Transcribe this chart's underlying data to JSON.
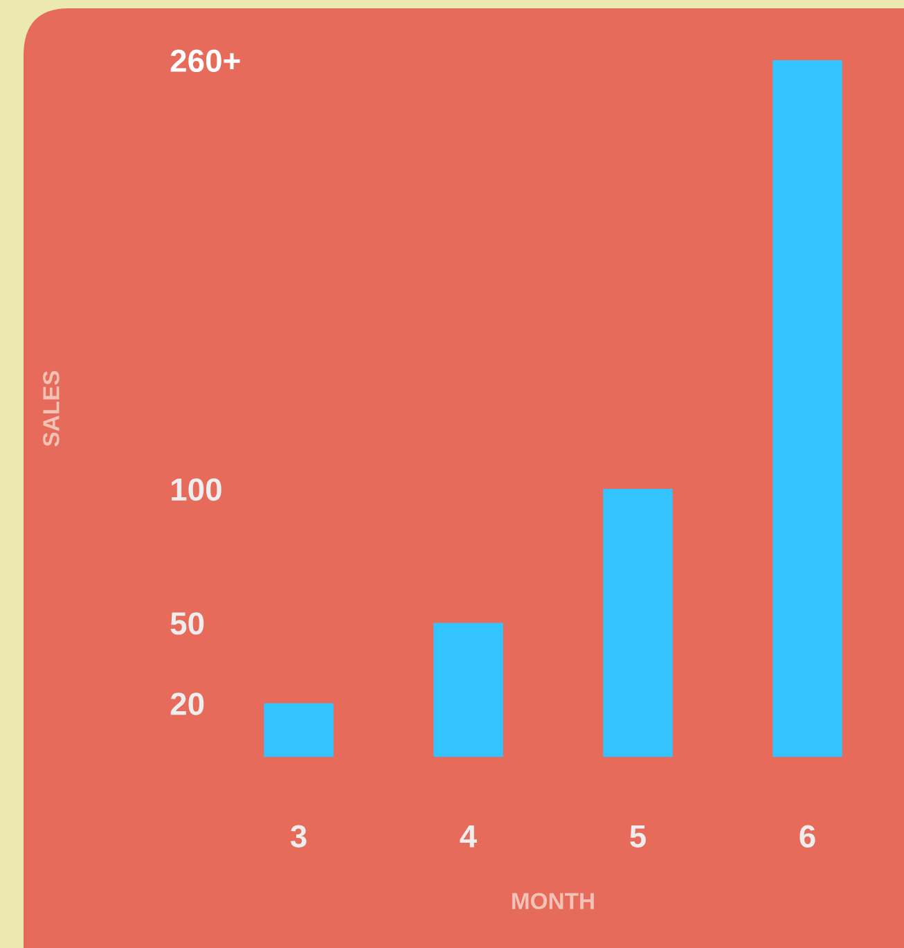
{
  "chart_data": {
    "type": "bar",
    "xlabel": "MONTH",
    "ylabel": "SALES",
    "categories": [
      "3",
      "4",
      "5",
      "6"
    ],
    "values": [
      20,
      50,
      100,
      260
    ],
    "color": "#33c4ff",
    "ylim": [
      0,
      260
    ],
    "yticks": [
      20,
      50,
      100,
      {
        "value": 260,
        "label": "260+"
      }
    ],
    "grid": false
  }
}
